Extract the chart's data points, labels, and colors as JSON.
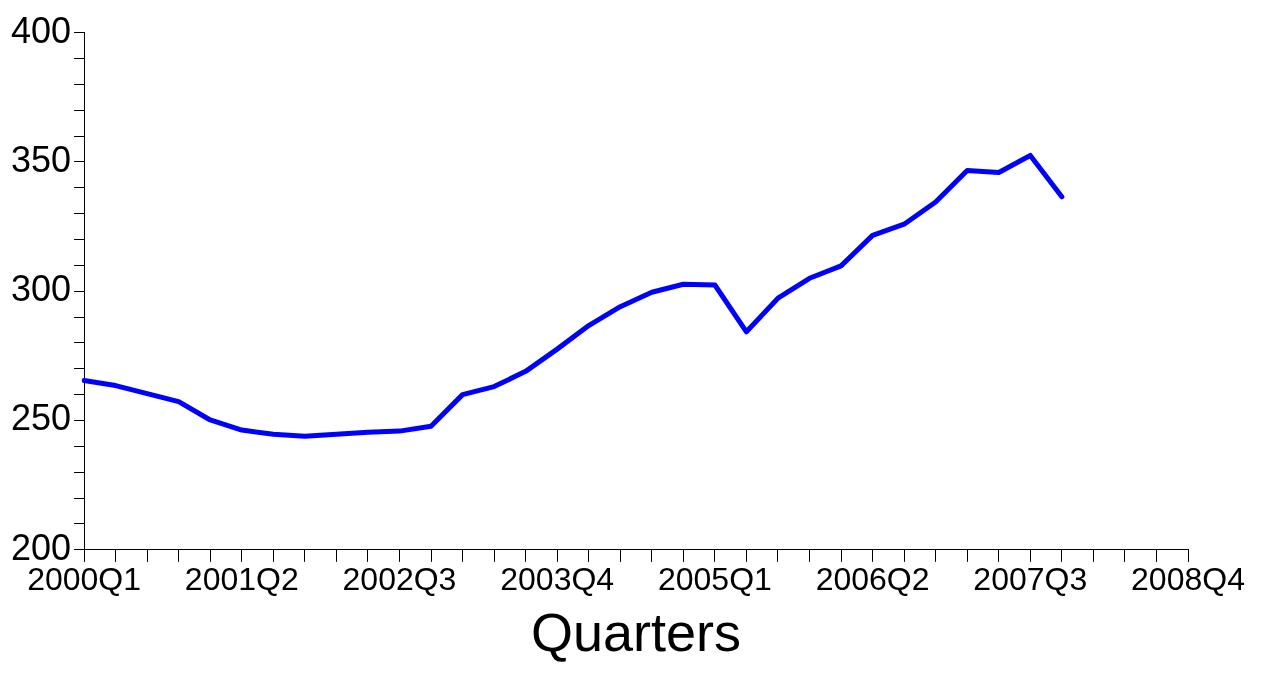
{
  "chart_data": {
    "type": "line",
    "xlabel": "Quarters",
    "categories": [
      "2000Q1",
      null,
      null,
      null,
      null,
      "2001Q2",
      null,
      null,
      null,
      null,
      "2002Q3",
      null,
      null,
      null,
      null,
      "2003Q4",
      null,
      null,
      null,
      null,
      "2005Q1",
      null,
      null,
      null,
      null,
      "2006Q2",
      null,
      null,
      null,
      null,
      "2007Q3",
      null,
      null,
      null,
      null,
      "2008Q4"
    ],
    "series": [
      {
        "color": "#0000ff",
        "values": [
          265.5,
          263.5,
          260.4,
          257.3,
          250.2,
          246.3,
          244.7,
          243.9,
          244.7,
          245.5,
          245.9,
          247.8,
          260,
          263.1,
          269,
          277.6,
          286.7,
          294,
          299.6,
          302.7,
          302.4,
          284.3,
          297.3,
          305,
          309.8,
          321.6,
          325.9,
          334.5,
          346.7,
          345.9,
          352.5,
          336.5,
          null,
          null,
          null,
          null
        ]
      }
    ],
    "ylim": [
      200,
      400
    ],
    "yticks": [
      200,
      {
        "value": 210,
        "label": null
      },
      {
        "value": 220,
        "label": null
      },
      {
        "value": 230,
        "label": null
      },
      {
        "value": 240,
        "label": null
      },
      250,
      {
        "value": 260,
        "label": null
      },
      {
        "value": 270,
        "label": null
      },
      {
        "value": 280,
        "label": null
      },
      {
        "value": 290,
        "label": null
      },
      300,
      {
        "value": 310,
        "label": null
      },
      {
        "value": 320,
        "label": null
      },
      {
        "value": 330,
        "label": null
      },
      {
        "value": 340,
        "label": null
      },
      350,
      {
        "value": 360,
        "label": null
      },
      {
        "value": 370,
        "label": null
      },
      {
        "value": 380,
        "label": null
      },
      {
        "value": 390,
        "label": null
      },
      400
    ],
    "grid": false,
    "legend": false,
    "marker": "none",
    "line_style": "solid"
  }
}
